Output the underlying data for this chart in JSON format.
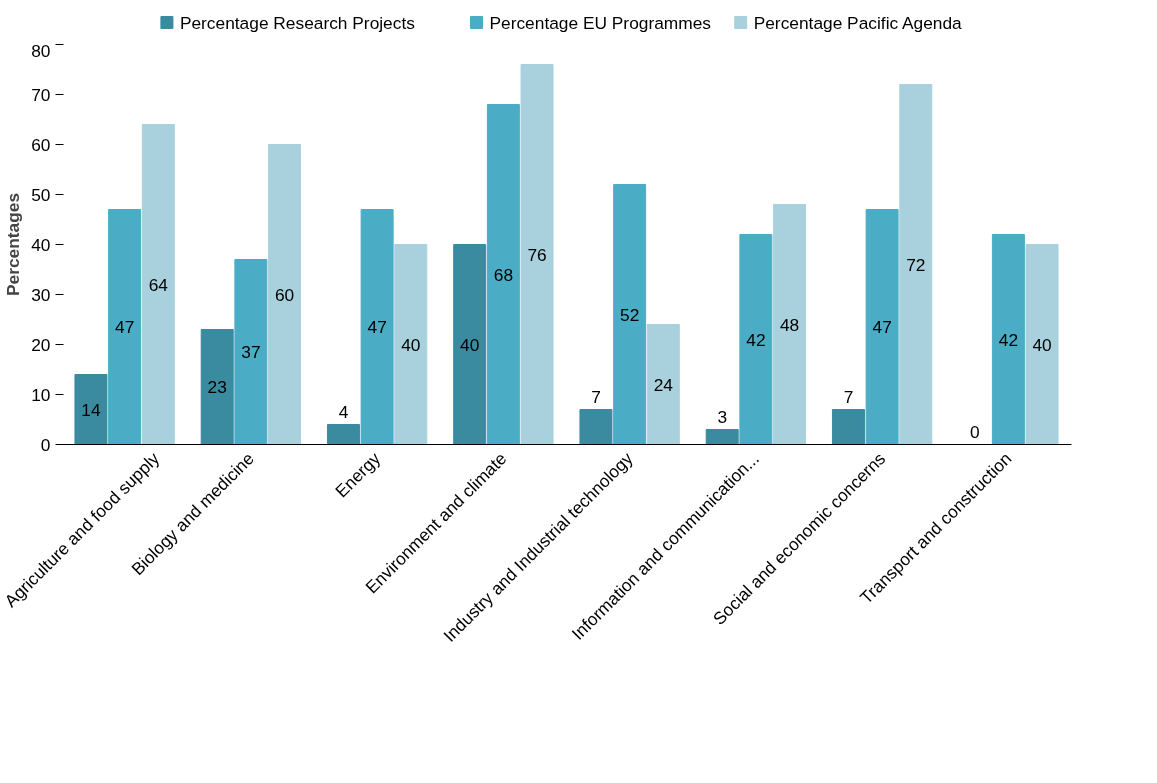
{
  "chart_data": {
    "type": "bar",
    "ylabel": "Percentages",
    "categories": [
      "Agriculture and food supply",
      "Biology and medicine",
      "Energy",
      "Environment and climate",
      "Industry and Industrial technology",
      "Information and communication...",
      "Social and economic concerns",
      "Transport and construction"
    ],
    "series": [
      {
        "name": "Percentage Research  Projects",
        "color": "#3a8aa0",
        "values": [
          14,
          23,
          4,
          40,
          7,
          3,
          7,
          0
        ]
      },
      {
        "name": "Percentage EU Programmes",
        "color": "#4bacc6",
        "values": [
          47,
          37,
          47,
          68,
          52,
          42,
          47,
          42
        ]
      },
      {
        "name": "Percentage Pacific Agenda",
        "color": "#a8d0dd",
        "values": [
          64,
          60,
          40,
          76,
          24,
          48,
          72,
          40
        ]
      }
    ],
    "ylim": [
      0,
      80
    ],
    "yticks": [
      0,
      10,
      20,
      30,
      40,
      50,
      60,
      70,
      80
    ],
    "grid": false,
    "legend": "top",
    "data_labels": true
  }
}
